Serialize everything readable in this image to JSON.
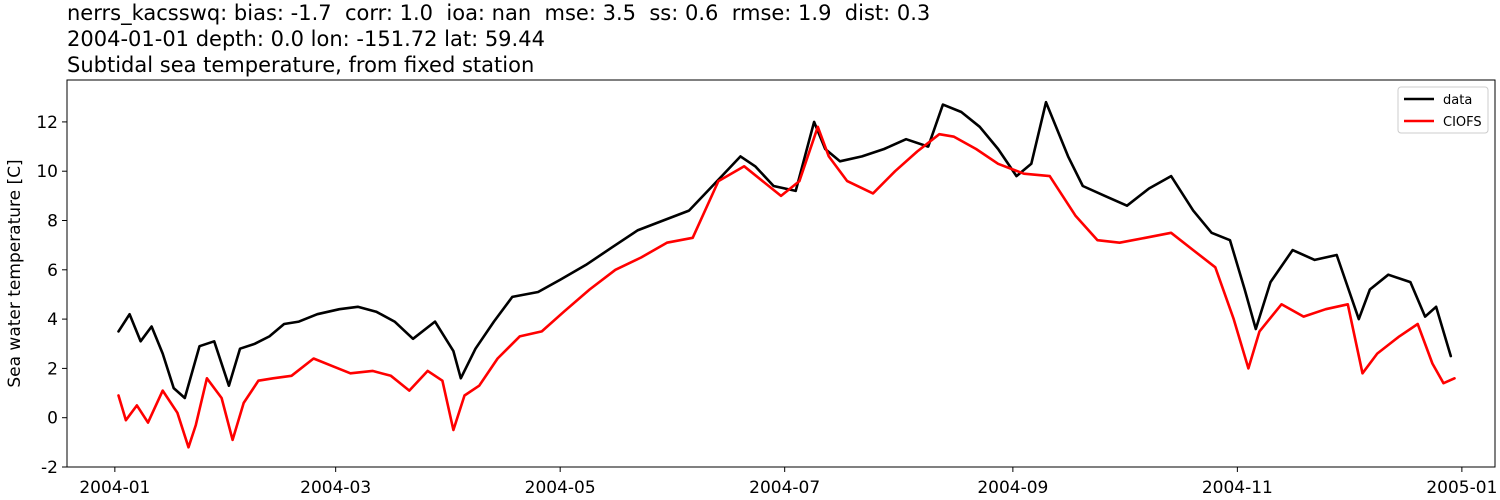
{
  "header": {
    "line1": "nerrs_kacsswq: bias: -1.7  corr: 1.0  ioa: nan  mse: 3.5  ss: 0.6  rmse: 1.9  dist: 0.3",
    "line2": "2004-01-01 depth: 0.0 lon: -151.72 lat: 59.44",
    "line3": "Subtidal sea temperature, from fixed station"
  },
  "chart_data": {
    "type": "line",
    "title": "nerrs_kacsswq: bias: -1.7  corr: 1.0  ioa: nan  mse: 3.5  ss: 0.6  rmse: 1.9  dist: 0.3",
    "subtitle": "2004-01-01 depth: 0.0 lon: -151.72 lat: 59.44 / Subtidal sea temperature, from fixed station",
    "xlabel": "",
    "ylabel": "Sea water temperature [C]",
    "xlim": [
      "2003-12-19",
      "2005-01-10"
    ],
    "ylim": [
      -2,
      13.7
    ],
    "yticks": [
      -2,
      0,
      2,
      4,
      6,
      8,
      10,
      12
    ],
    "xticks": [
      "2004-01",
      "2004-03",
      "2004-05",
      "2004-07",
      "2004-09",
      "2004-11",
      "2005-01"
    ],
    "grid": false,
    "legend_position": "top-right",
    "series": [
      {
        "name": "data",
        "color": "#000000",
        "x": [
          "2004-01-02",
          "2004-01-05",
          "2004-01-08",
          "2004-01-11",
          "2004-01-14",
          "2004-01-17",
          "2004-01-20",
          "2004-01-24",
          "2004-01-28",
          "2004-02-01",
          "2004-02-04",
          "2004-02-08",
          "2004-02-12",
          "2004-02-16",
          "2004-02-20",
          "2004-02-25",
          "2004-03-02",
          "2004-03-07",
          "2004-03-12",
          "2004-03-17",
          "2004-03-22",
          "2004-03-28",
          "2004-04-02",
          "2004-04-04",
          "2004-04-08",
          "2004-04-13",
          "2004-04-18",
          "2004-04-25",
          "2004-05-01",
          "2004-05-08",
          "2004-05-15",
          "2004-05-22",
          "2004-05-29",
          "2004-06-05",
          "2004-06-12",
          "2004-06-19",
          "2004-06-23",
          "2004-06-28",
          "2004-07-04",
          "2004-07-09",
          "2004-07-12",
          "2004-07-16",
          "2004-07-22",
          "2004-07-28",
          "2004-08-03",
          "2004-08-09",
          "2004-08-13",
          "2004-08-18",
          "2004-08-23",
          "2004-08-28",
          "2004-09-02",
          "2004-09-06",
          "2004-09-10",
          "2004-09-16",
          "2004-09-20",
          "2004-09-26",
          "2004-10-02",
          "2004-10-08",
          "2004-10-14",
          "2004-10-20",
          "2004-10-25",
          "2004-10-30",
          "2004-11-03",
          "2004-11-06",
          "2004-11-10",
          "2004-11-16",
          "2004-11-22",
          "2004-11-28",
          "2004-12-04",
          "2004-12-07",
          "2004-12-12",
          "2004-12-18",
          "2004-12-22",
          "2004-12-25",
          "2004-12-29"
        ],
        "values": [
          3.5,
          4.2,
          3.1,
          3.7,
          2.6,
          1.2,
          0.8,
          2.9,
          3.1,
          1.3,
          2.8,
          3.0,
          3.3,
          3.8,
          3.9,
          4.2,
          4.4,
          4.5,
          4.3,
          3.9,
          3.2,
          3.9,
          2.7,
          1.6,
          2.8,
          3.9,
          4.9,
          5.1,
          5.6,
          6.2,
          6.9,
          7.6,
          8.0,
          8.4,
          9.5,
          10.6,
          10.2,
          9.4,
          9.2,
          12.0,
          10.9,
          10.4,
          10.6,
          10.9,
          11.3,
          11.0,
          12.7,
          12.4,
          11.8,
          10.9,
          9.8,
          10.3,
          12.8,
          10.6,
          9.4,
          9.0,
          8.6,
          9.3,
          9.8,
          8.4,
          7.5,
          7.2,
          5.2,
          3.6,
          5.5,
          6.8,
          6.4,
          6.6,
          4.0,
          5.2,
          5.8,
          5.5,
          4.1,
          4.5,
          2.5
        ]
      },
      {
        "name": "CIOFS",
        "color": "#ff0000",
        "x": [
          "2004-01-02",
          "2004-01-04",
          "2004-01-07",
          "2004-01-10",
          "2004-01-14",
          "2004-01-18",
          "2004-01-21",
          "2004-01-23",
          "2004-01-26",
          "2004-01-30",
          "2004-02-02",
          "2004-02-05",
          "2004-02-09",
          "2004-02-13",
          "2004-02-18",
          "2004-02-24",
          "2004-02-29",
          "2004-03-05",
          "2004-03-11",
          "2004-03-16",
          "2004-03-21",
          "2004-03-26",
          "2004-03-30",
          "2004-04-02",
          "2004-04-05",
          "2004-04-09",
          "2004-04-14",
          "2004-04-20",
          "2004-04-26",
          "2004-05-02",
          "2004-05-09",
          "2004-05-16",
          "2004-05-23",
          "2004-05-30",
          "2004-06-06",
          "2004-06-13",
          "2004-06-20",
          "2004-06-25",
          "2004-06-30",
          "2004-07-05",
          "2004-07-10",
          "2004-07-13",
          "2004-07-18",
          "2004-07-25",
          "2004-07-31",
          "2004-08-06",
          "2004-08-12",
          "2004-08-16",
          "2004-08-22",
          "2004-08-28",
          "2004-09-04",
          "2004-09-11",
          "2004-09-18",
          "2004-09-24",
          "2004-09-30",
          "2004-10-07",
          "2004-10-14",
          "2004-10-20",
          "2004-10-26",
          "2004-10-31",
          "2004-11-04",
          "2004-11-07",
          "2004-11-13",
          "2004-11-19",
          "2004-11-25",
          "2004-12-01",
          "2004-12-05",
          "2004-12-09",
          "2004-12-15",
          "2004-12-20",
          "2004-12-24",
          "2004-12-27",
          "2004-12-30"
        ],
        "values": [
          0.9,
          -0.1,
          0.5,
          -0.2,
          1.1,
          0.2,
          -1.2,
          -0.3,
          1.6,
          0.8,
          -0.9,
          0.6,
          1.5,
          1.6,
          1.7,
          2.4,
          2.1,
          1.8,
          1.9,
          1.7,
          1.1,
          1.9,
          1.5,
          -0.5,
          0.9,
          1.3,
          2.4,
          3.3,
          3.5,
          4.3,
          5.2,
          6.0,
          6.5,
          7.1,
          7.3,
          9.6,
          10.2,
          9.6,
          9.0,
          9.6,
          11.8,
          10.6,
          9.6,
          9.1,
          10.0,
          10.8,
          11.5,
          11.4,
          10.9,
          10.3,
          9.9,
          9.8,
          8.2,
          7.2,
          7.1,
          7.3,
          7.5,
          6.8,
          6.1,
          4.0,
          2.0,
          3.5,
          4.6,
          4.1,
          4.4,
          4.6,
          1.8,
          2.6,
          3.3,
          3.8,
          2.2,
          1.4,
          1.6
        ]
      }
    ]
  }
}
